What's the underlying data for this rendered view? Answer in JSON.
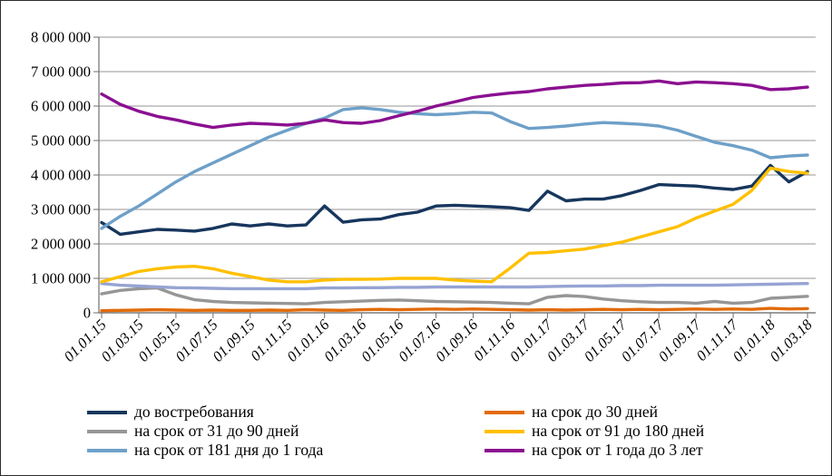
{
  "figure": {
    "background": "#FFFFFF",
    "border_color": "#2B2B2B",
    "title": ""
  },
  "chart_data": {
    "type": "line",
    "title": "",
    "xlabel": "",
    "ylabel": "",
    "ylim": [
      0,
      8000000
    ],
    "grid": "horizontal",
    "legend_position": "bottom, two columns",
    "x_points_per_label": 2,
    "x_points_note": "39 monthly points from 01.01.15 to 01.03.18; axis labels every 2 months",
    "y_tick_labels": [
      "0",
      "1 000 000",
      "2 000 000",
      "3 000 000",
      "4 000 000",
      "5 000 000",
      "6 000 000",
      "7 000 000",
      "8 000 000"
    ],
    "x_tick_labels": [
      "01.01.15",
      "01.03.15",
      "01.05.15",
      "01.07.15",
      "01.09.15",
      "01.11.15",
      "01.01.16",
      "01.03.16",
      "01.05.16",
      "01.07.16",
      "01.09.16",
      "01.11.16",
      "01.01.17",
      "01.03.17",
      "01.05.17",
      "01.07.17",
      "01.09.17",
      "01.11.17",
      "01.01.18",
      "01.03.18"
    ],
    "draw_order": [
      1,
      2,
      6,
      0,
      3,
      4,
      5
    ],
    "series": [
      {
        "name": "до востребования",
        "color": "#17365D",
        "in_legend": true,
        "values": [
          2620000,
          2280000,
          2350000,
          2420000,
          2400000,
          2370000,
          2450000,
          2580000,
          2520000,
          2580000,
          2520000,
          2550000,
          3100000,
          2630000,
          2700000,
          2720000,
          2850000,
          2920000,
          3100000,
          3120000,
          3100000,
          3080000,
          3050000,
          2970000,
          3530000,
          3250000,
          3300000,
          3300000,
          3400000,
          3550000,
          3720000,
          3700000,
          3680000,
          3620000,
          3580000,
          3680000,
          4280000,
          3800000,
          4100000
        ]
      },
      {
        "name": "на срок до 30 дней",
        "color": "#E26B0A",
        "in_legend": true,
        "values": [
          60000,
          70000,
          80000,
          90000,
          80000,
          70000,
          80000,
          70000,
          70000,
          80000,
          70000,
          90000,
          80000,
          70000,
          90000,
          100000,
          90000,
          100000,
          110000,
          100000,
          110000,
          100000,
          90000,
          80000,
          90000,
          80000,
          90000,
          100000,
          90000,
          100000,
          90000,
          100000,
          110000,
          100000,
          110000,
          100000,
          130000,
          110000,
          120000
        ]
      },
      {
        "name": "на срок от 31 до 90 дней",
        "color": "#969696",
        "in_legend": true,
        "values": [
          550000,
          650000,
          700000,
          720000,
          520000,
          380000,
          330000,
          300000,
          290000,
          280000,
          270000,
          260000,
          300000,
          320000,
          340000,
          360000,
          370000,
          350000,
          330000,
          320000,
          310000,
          300000,
          280000,
          260000,
          450000,
          500000,
          470000,
          400000,
          350000,
          320000,
          300000,
          300000,
          280000,
          330000,
          280000,
          300000,
          420000,
          450000,
          480000
        ]
      },
      {
        "name": "на срок от 91 до 180 дней",
        "color": "#FFC000",
        "in_legend": true,
        "values": [
          900000,
          1050000,
          1200000,
          1280000,
          1330000,
          1350000,
          1280000,
          1150000,
          1050000,
          950000,
          900000,
          900000,
          950000,
          970000,
          970000,
          980000,
          1000000,
          1000000,
          1000000,
          950000,
          920000,
          900000,
          1300000,
          1730000,
          1750000,
          1800000,
          1850000,
          1950000,
          2050000,
          2200000,
          2350000,
          2500000,
          2750000,
          2950000,
          3150000,
          3550000,
          4200000,
          4100000,
          4050000
        ]
      },
      {
        "name": "на срок от 181 дня до 1 года",
        "color": "#6EA0C8",
        "in_legend": true,
        "values": [
          2450000,
          2800000,
          3100000,
          3450000,
          3800000,
          4100000,
          4350000,
          4600000,
          4850000,
          5100000,
          5300000,
          5500000,
          5650000,
          5900000,
          5950000,
          5900000,
          5820000,
          5780000,
          5750000,
          5780000,
          5820000,
          5800000,
          5550000,
          5350000,
          5380000,
          5420000,
          5480000,
          5520000,
          5500000,
          5470000,
          5420000,
          5300000,
          5120000,
          4950000,
          4850000,
          4720000,
          4500000,
          4550000,
          4580000
        ]
      },
      {
        "name": "на срок от 1 года до 3 лет",
        "color": "#8A1090",
        "in_legend": true,
        "values": [
          6350000,
          6050000,
          5850000,
          5700000,
          5600000,
          5480000,
          5380000,
          5450000,
          5500000,
          5480000,
          5450000,
          5500000,
          5600000,
          5520000,
          5500000,
          5580000,
          5720000,
          5850000,
          6000000,
          6120000,
          6250000,
          6320000,
          6380000,
          6420000,
          6500000,
          6550000,
          6600000,
          6630000,
          6670000,
          6680000,
          6730000,
          6650000,
          6700000,
          6680000,
          6650000,
          6600000,
          6480000,
          6500000,
          6550000
        ]
      },
      {
        "name": "",
        "color": "#96A3D3",
        "in_legend": false,
        "values": [
          850000,
          800000,
          780000,
          750000,
          730000,
          720000,
          710000,
          700000,
          700000,
          700000,
          700000,
          700000,
          720000,
          720000,
          730000,
          730000,
          740000,
          740000,
          750000,
          750000,
          750000,
          750000,
          750000,
          750000,
          760000,
          770000,
          780000,
          780000,
          790000,
          790000,
          800000,
          800000,
          800000,
          800000,
          810000,
          820000,
          830000,
          840000,
          850000
        ]
      }
    ]
  }
}
